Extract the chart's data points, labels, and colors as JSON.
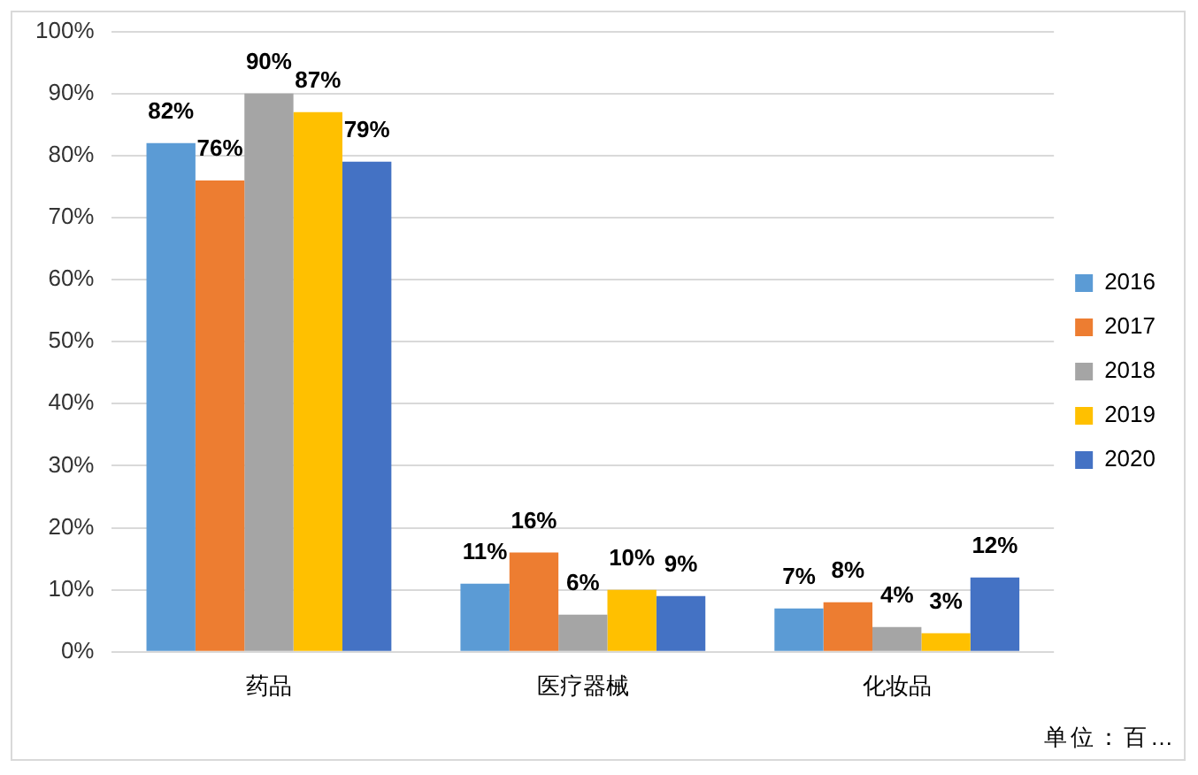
{
  "chart_data": {
    "type": "bar",
    "categories": [
      "药品",
      "医疗器械",
      "化妆品"
    ],
    "series": [
      {
        "name": "2016",
        "color": "#5b9bd5",
        "values": [
          82,
          11,
          7
        ],
        "value_labels": [
          "82%",
          "11%",
          "7%"
        ]
      },
      {
        "name": "2017",
        "color": "#ed7d31",
        "values": [
          76,
          16,
          8
        ],
        "value_labels": [
          "76%",
          "16%",
          "8%"
        ]
      },
      {
        "name": "2018",
        "color": "#a5a5a5",
        "values": [
          90,
          6,
          4
        ],
        "value_labels": [
          "90%",
          "6%",
          "4%"
        ]
      },
      {
        "name": "2019",
        "color": "#ffc000",
        "values": [
          87,
          10,
          3
        ],
        "value_labels": [
          "87%",
          "10%",
          "3%"
        ]
      },
      {
        "name": "2020",
        "color": "#4472c4",
        "values": [
          79,
          9,
          12
        ],
        "value_labels": [
          "79%",
          "9%",
          "12%"
        ]
      }
    ],
    "ylim": [
      0,
      100
    ],
    "yticks": [
      {
        "value": 0,
        "label": "0%"
      },
      {
        "value": 10,
        "label": "10%"
      },
      {
        "value": 20,
        "label": "20%"
      },
      {
        "value": 30,
        "label": "30%"
      },
      {
        "value": 40,
        "label": "40%"
      },
      {
        "value": 50,
        "label": "50%"
      },
      {
        "value": 60,
        "label": "60%"
      },
      {
        "value": 70,
        "label": "70%"
      },
      {
        "value": 80,
        "label": "80%"
      },
      {
        "value": 90,
        "label": "90%"
      },
      {
        "value": 100,
        "label": "100%"
      }
    ],
    "grid": "y",
    "legend": "right",
    "annotations": [
      "单位：百…"
    ]
  }
}
